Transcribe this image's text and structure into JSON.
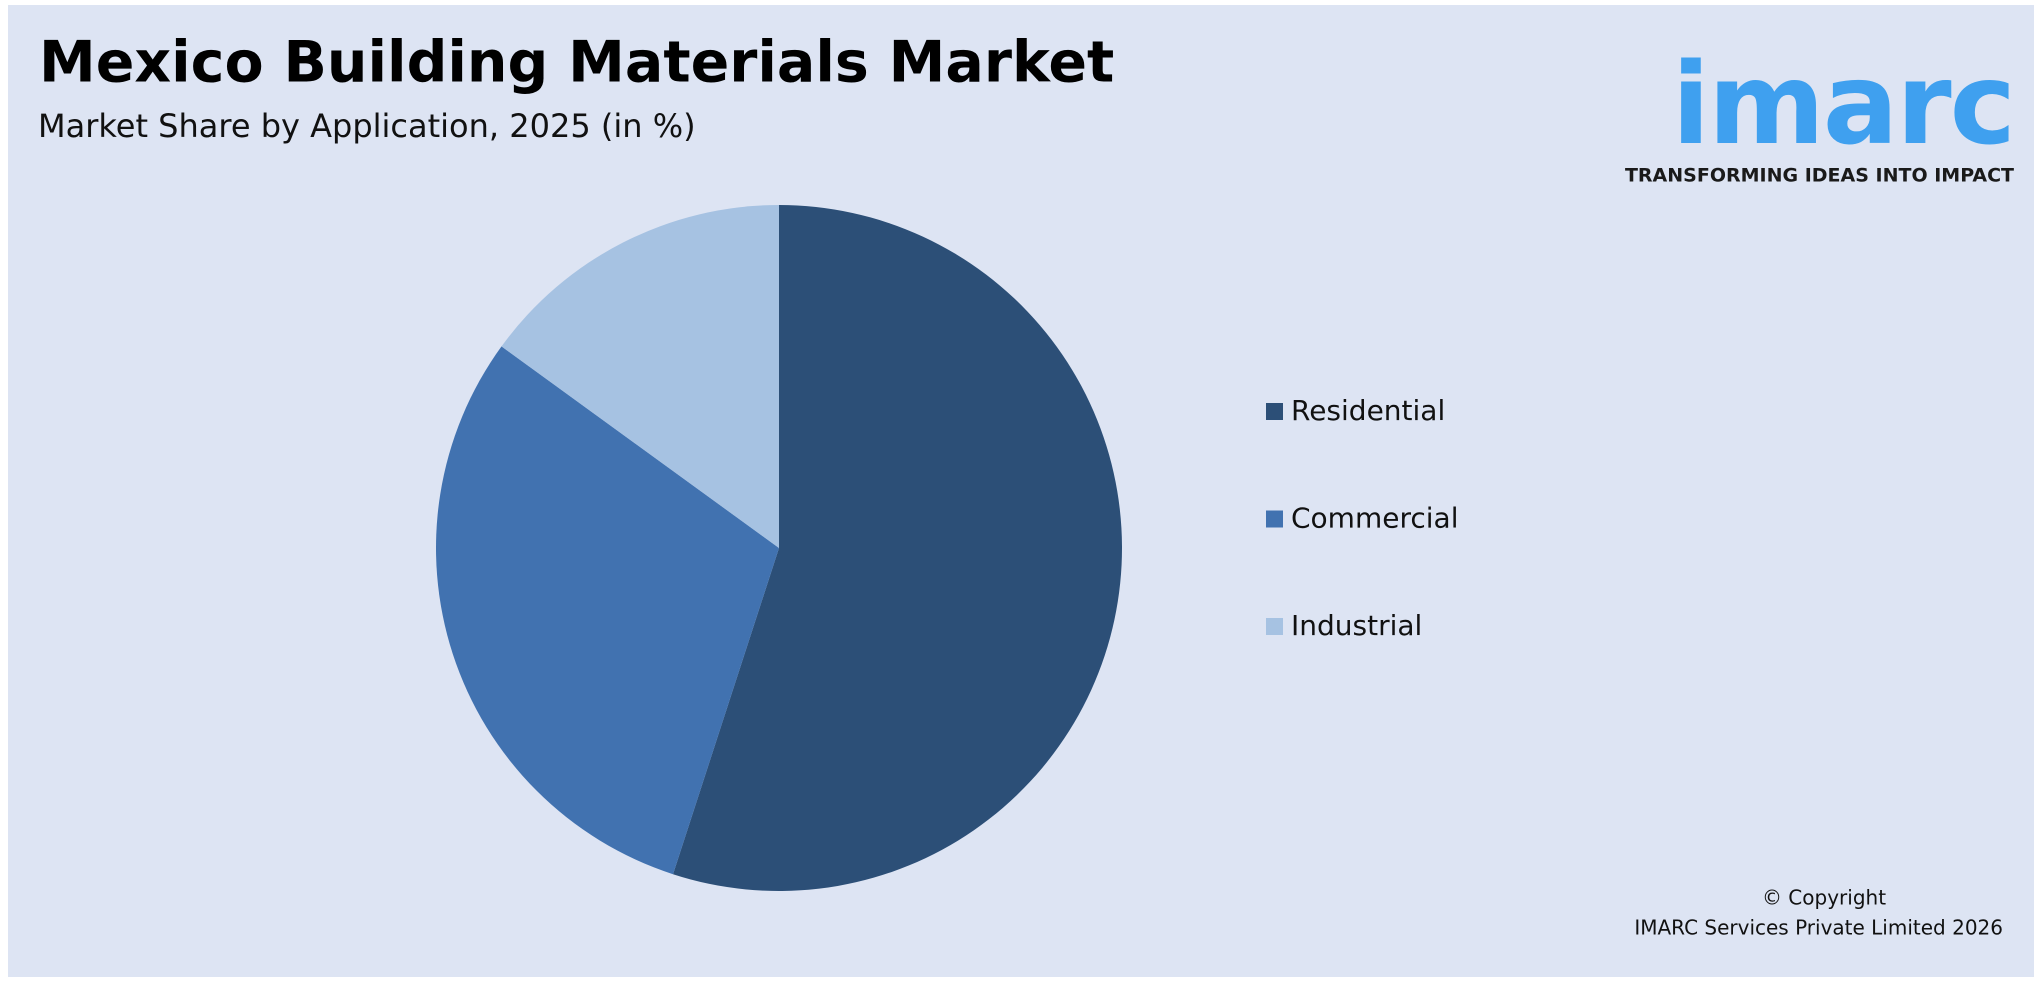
{
  "chart_data": {
    "type": "pie",
    "title": "Mexico Building Materials Market",
    "subtitle": "Market Share by Application, 2025 (in %)",
    "categories": [
      "Residential",
      "Commercial",
      "Industrial"
    ],
    "values": [
      55,
      30,
      15
    ],
    "colors": [
      "#2c4f77",
      "#4172b0",
      "#a6c2e2"
    ],
    "legend": "right"
  },
  "branding": {
    "logo": "imarc",
    "tagline": "TRANSFORMING IDEAS INTO IMPACT",
    "copyright": [
      "© Copyright",
      "IMARC Services Private Limited 2026"
    ]
  }
}
